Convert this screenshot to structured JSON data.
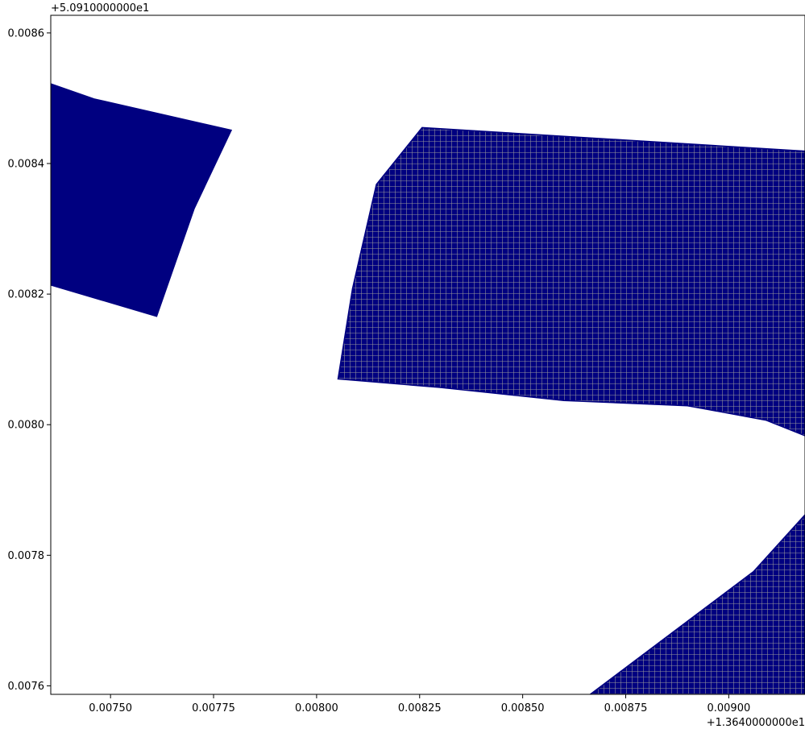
{
  "chart_data": {
    "type": "map",
    "title": "",
    "xlabel": "",
    "ylabel": "",
    "x_offset_label": "+1.3640000000e1",
    "y_offset_label": "+5.0910000000e1",
    "xlim": [
      0.007355,
      0.009185
    ],
    "ylim": [
      0.007587,
      0.008627
    ],
    "grid": false,
    "x_ticks": [
      {
        "value": 0.0075,
        "label": "0.00750"
      },
      {
        "value": 0.00775,
        "label": "0.00775"
      },
      {
        "value": 0.008,
        "label": "0.00800"
      },
      {
        "value": 0.00825,
        "label": "0.00825"
      },
      {
        "value": 0.0085,
        "label": "0.00850"
      },
      {
        "value": 0.00875,
        "label": "0.00875"
      },
      {
        "value": 0.009,
        "label": "0.00900"
      }
    ],
    "y_ticks": [
      {
        "value": 0.0076,
        "label": "0.0076"
      },
      {
        "value": 0.0078,
        "label": "0.0078"
      },
      {
        "value": 0.008,
        "label": "0.0080"
      },
      {
        "value": 0.0082,
        "label": "0.0082"
      },
      {
        "value": 0.0084,
        "label": "0.0084"
      },
      {
        "value": 0.0086,
        "label": "0.0086"
      }
    ],
    "colors": {
      "fill": "#000080",
      "hatch": "#999999"
    },
    "polygons": [
      {
        "name": "left-polygon",
        "hatched": false,
        "points": [
          [
            0.007355,
            0.008522
          ],
          [
            0.00746,
            0.008499
          ],
          [
            0.007793,
            0.008451
          ],
          [
            0.007703,
            0.008331
          ],
          [
            0.007612,
            0.008166
          ],
          [
            0.007355,
            0.008214
          ]
        ]
      },
      {
        "name": "center-polygon",
        "hatched": true,
        "points": [
          [
            0.008256,
            0.008455
          ],
          [
            0.009185,
            0.008419
          ],
          [
            0.009185,
            0.007983
          ],
          [
            0.00909,
            0.008007
          ],
          [
            0.0089,
            0.008029
          ],
          [
            0.0086,
            0.008037
          ],
          [
            0.0083,
            0.008057
          ],
          [
            0.008052,
            0.00807
          ],
          [
            0.008087,
            0.008208
          ],
          [
            0.008145,
            0.008368
          ]
        ]
      },
      {
        "name": "bottom-right-polygon",
        "hatched": true,
        "points": [
          [
            0.008664,
            0.007587
          ],
          [
            0.009185,
            0.007587
          ],
          [
            0.009185,
            0.007862
          ],
          [
            0.00906,
            0.007775
          ],
          [
            0.008664,
            0.007587
          ]
        ]
      }
    ]
  }
}
